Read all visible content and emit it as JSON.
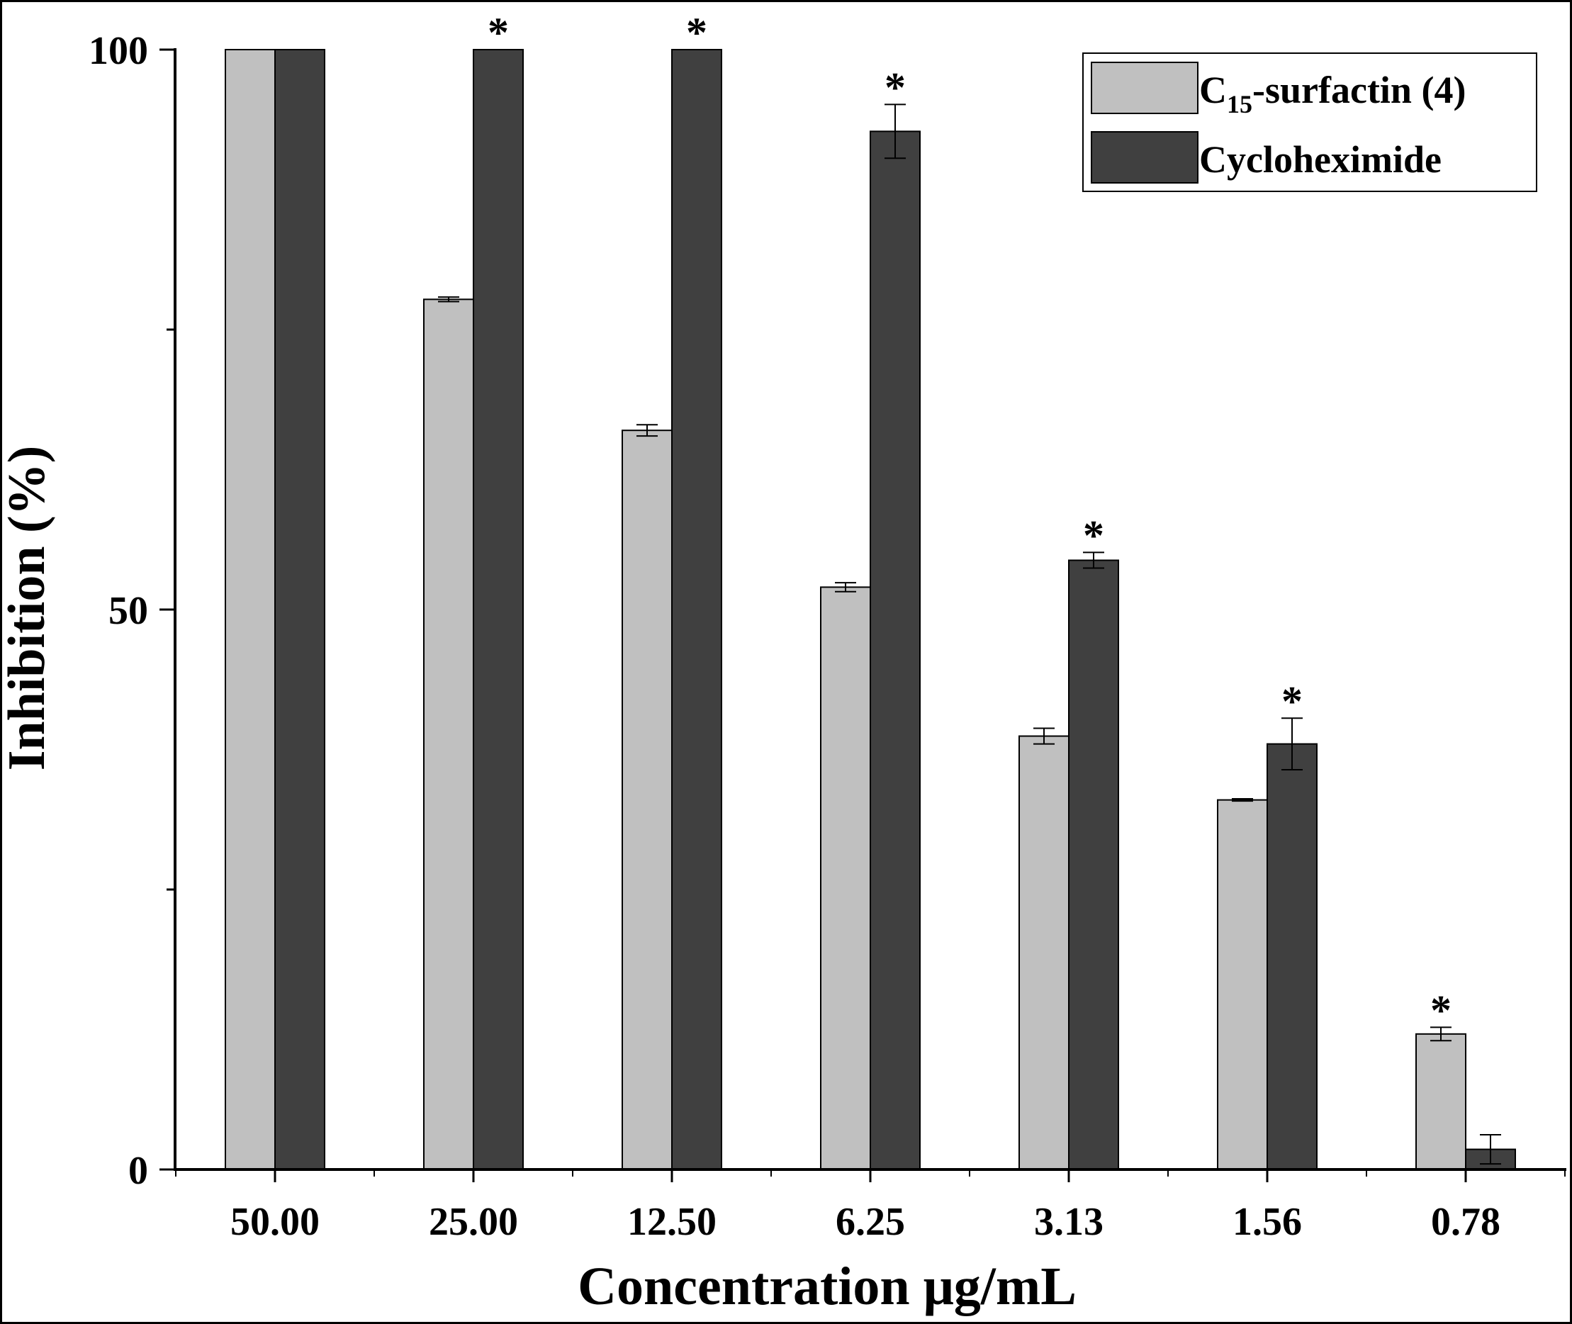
{
  "chart_data": {
    "type": "bar",
    "title": "",
    "xlabel": "Concentration μg/mL",
    "ylabel": "Inhibition (%)",
    "ylim": [
      0,
      100
    ],
    "yticks": [
      0,
      25,
      50,
      75,
      100
    ],
    "ytick_labels": {
      "0": "0",
      "50": "50",
      "100": "100"
    },
    "categories": [
      "50.00",
      "25.00",
      "12.50",
      "6.25",
      "3.13",
      "1.56",
      "0.78"
    ],
    "series": [
      {
        "name": "C15-surfactin (4)",
        "legend_main": "C",
        "legend_sub": "15",
        "legend_rest": "-surfactin (4)",
        "color": "#c0c0c0",
        "values": [
          100,
          77.7,
          66.0,
          52.0,
          38.7,
          33.0,
          12.1
        ],
        "errors": [
          0,
          0.2,
          0.5,
          0.4,
          0.7,
          0.1,
          0.6
        ],
        "significance": [
          "",
          "",
          "",
          "",
          "",
          "",
          "*"
        ]
      },
      {
        "name": "Cycloheximide",
        "color": "#404040",
        "values": [
          100,
          100,
          100,
          92.7,
          54.4,
          38.0,
          1.8
        ],
        "errors": [
          0,
          0,
          0,
          2.4,
          0.7,
          2.3,
          1.3
        ],
        "significance": [
          "",
          "*",
          "*",
          "*",
          "*",
          "*",
          ""
        ]
      }
    ],
    "legend_position": "top-right"
  }
}
